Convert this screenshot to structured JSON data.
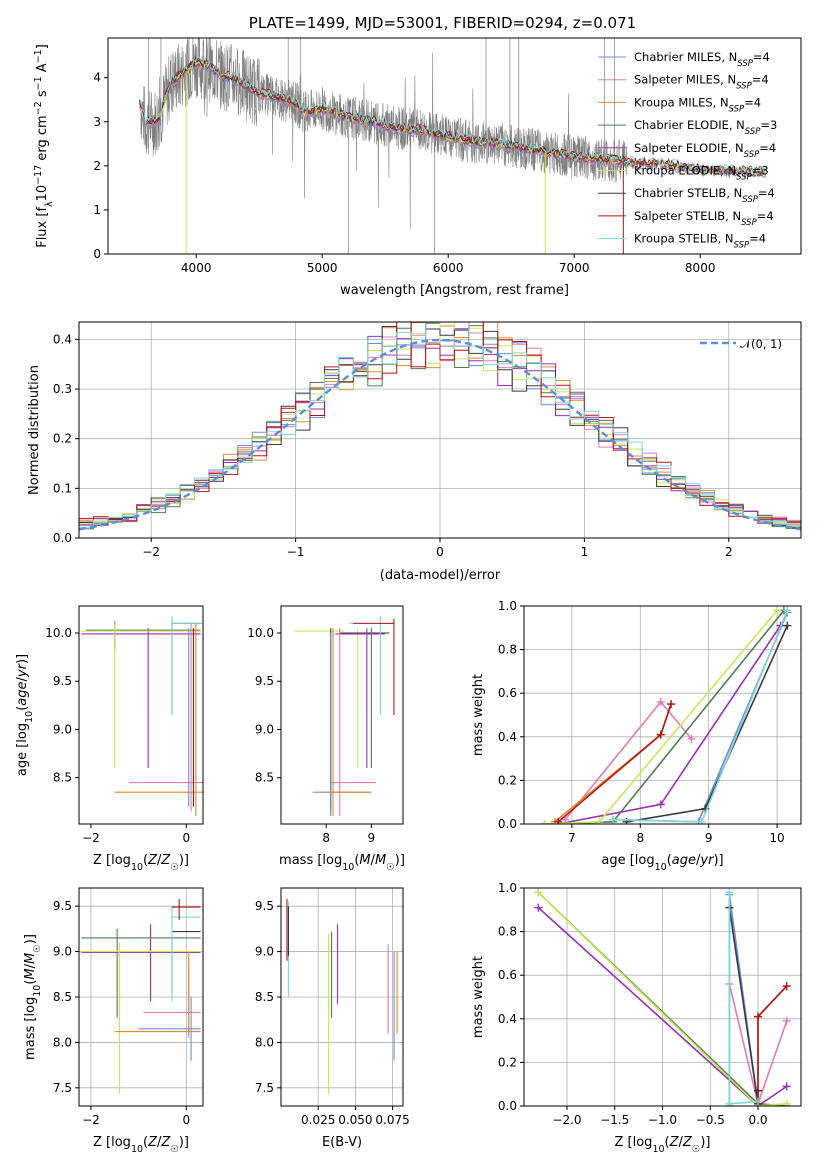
{
  "colors": {
    "Chabrier MILES": "#6b8fe0",
    "Salpeter MILES": "#e07bb8",
    "Kroupa MILES": "#e08a30",
    "Chabrier ELODIE": "#4e7f4e",
    "Salpeter ELODIE": "#9b2fb5",
    "Kroupa ELODIE": "#c8e65a",
    "Chabrier STELIB": "#3a3a3a",
    "Salpeter STELIB": "#b01818",
    "Kroupa STELIB": "#7ed6d6",
    "data": "#808080",
    "normal": "#5b8fd9"
  },
  "chart_data": [
    {
      "id": "spectrum",
      "type": "line",
      "title": "PLATE=1499, MJD=53001, FIBERID=0294, z=0.071",
      "xlabel": "wavelength [Angstrom, rest frame]",
      "ylabel": "Flux [f_λ 10^-17 erg cm^-2 s^-1 A^-1]",
      "xlim": [
        3300,
        8800
      ],
      "ylim": [
        0,
        4.9
      ],
      "xticks": [
        "4000",
        "5000",
        "6000",
        "7000",
        "8000"
      ],
      "yticks": [
        "0",
        "1",
        "2",
        "3",
        "4"
      ],
      "legend_position": "top-right",
      "legend": [
        "Chabrier MILES, N_SSP=4",
        "Salpeter MILES, N_SSP=4",
        "Kroupa MILES, N_SSP=4",
        "Chabrier ELODIE, N_SSP=3",
        "Salpeter ELODIE, N_SSP=4",
        "Kroupa ELODIE, N_SSP=3",
        "Chabrier STELIB, N_SSP=4",
        "Salpeter STELIB, N_SSP=4",
        "Kroupa STELIB, N_SSP=4"
      ],
      "model_x": [
        3550,
        3600,
        3700,
        3800,
        3900,
        4000,
        4100,
        4200,
        4300,
        4400,
        4500,
        4600,
        4700,
        4800,
        4860,
        5000,
        5200,
        5400,
        5600,
        5800,
        6000,
        6200,
        6400,
        6600,
        6800,
        7000,
        7200,
        7400,
        7500,
        7700,
        7900,
        8100,
        8300,
        8500
      ],
      "model_y": [
        3.45,
        2.95,
        3.05,
        3.9,
        4.1,
        4.35,
        4.25,
        4.05,
        4.0,
        3.8,
        3.65,
        3.6,
        3.5,
        3.4,
        3.2,
        3.3,
        3.1,
        3.0,
        2.85,
        2.8,
        2.65,
        2.55,
        2.5,
        2.4,
        2.3,
        2.2,
        2.15,
        2.1,
        2.05,
        2.05,
        1.95,
        1.9,
        1.88,
        1.85
      ]
    },
    {
      "id": "residuals",
      "type": "histogram",
      "xlabel": "(data-model)/error",
      "ylabel": "Normed distribution",
      "xlim": [
        -2.5,
        2.5
      ],
      "ylim": [
        0,
        0.435
      ],
      "xticks": [
        "−2",
        "−1",
        "0",
        "1",
        "2"
      ],
      "yticks": [
        "0.0",
        "0.1",
        "0.2",
        "0.3",
        "0.4"
      ],
      "grid": true,
      "legend_position": "top-right",
      "legend": [
        "𝒩(0, 1)"
      ],
      "bin_width": 0.1
    },
    {
      "id": "age-vs-z",
      "type": "errorbar",
      "xlabel": "Z [log10(Z/Z☉)]",
      "ylabel": "age [log10(age/yr)]",
      "xlim": [
        -2.25,
        0.35
      ],
      "ylim": [
        8.02,
        10.28
      ],
      "xticks": [
        "−2",
        "0"
      ],
      "yticks": [
        "8.5",
        "9.0",
        "9.5",
        "10.0"
      ]
    },
    {
      "id": "age-vs-mass",
      "type": "errorbar",
      "xlabel": "mass [log10(M/M☉)]",
      "ylabel": "",
      "xlim": [
        7.0,
        9.7
      ],
      "ylim": [
        8.02,
        10.28
      ],
      "xticks": [
        "8",
        "9"
      ],
      "yticks": [
        "8.5",
        "9.0",
        "9.5",
        "10.0"
      ]
    },
    {
      "id": "weight-vs-age",
      "type": "line",
      "xlabel": "age [log10(age/yr)]",
      "ylabel": "mass weight",
      "xlim": [
        6.3,
        10.35
      ],
      "ylim": [
        0,
        1
      ],
      "xticks": [
        "7",
        "8",
        "9",
        "10"
      ],
      "yticks": [
        "0.0",
        "0.2",
        "0.4",
        "0.6",
        "0.8",
        "1.0"
      ],
      "grid": true,
      "series": [
        {
          "name": "Chabrier MILES",
          "x": [
            7.6,
            8.85,
            10.15
          ],
          "y": [
            0.02,
            0.01,
            0.97
          ]
        },
        {
          "name": "Salpeter MILES",
          "x": [
            6.9,
            8.3,
            8.75
          ],
          "y": [
            0.02,
            0.56,
            0.39
          ]
        },
        {
          "name": "Kroupa MILES",
          "x": [
            6.75,
            8.3,
            8.45
          ],
          "y": [
            0.01,
            0.41,
            0.55
          ]
        },
        {
          "name": "Chabrier ELODIE",
          "x": [
            6.6,
            7.6,
            10.1
          ],
          "y": [
            0.0,
            0.01,
            0.98
          ]
        },
        {
          "name": "Salpeter ELODIE",
          "x": [
            6.8,
            8.3,
            10.05
          ],
          "y": [
            0.0,
            0.09,
            0.91
          ]
        },
        {
          "name": "Kroupa ELODIE",
          "x": [
            6.6,
            7.4,
            10.0
          ],
          "y": [
            0.0,
            0.01,
            0.98
          ]
        },
        {
          "name": "Chabrier STELIB",
          "x": [
            7.8,
            8.95,
            10.15
          ],
          "y": [
            0.01,
            0.07,
            0.91
          ]
        },
        {
          "name": "Salpeter STELIB",
          "x": [
            6.8,
            8.3,
            8.45
          ],
          "y": [
            0.01,
            0.41,
            0.55
          ]
        },
        {
          "name": "Kroupa STELIB",
          "x": [
            7.6,
            8.9,
            10.15
          ],
          "y": [
            0.02,
            0.01,
            0.98
          ]
        }
      ]
    },
    {
      "id": "mass-vs-z",
      "type": "errorbar",
      "xlabel": "Z [log10(Z/Z☉)]",
      "ylabel": "mass [log10(M/M☉)]",
      "xlim": [
        -2.25,
        0.35
      ],
      "ylim": [
        7.3,
        9.7
      ],
      "xticks": [
        "−2",
        "0"
      ],
      "yticks": [
        "7.5",
        "8.0",
        "8.5",
        "9.0",
        "9.5"
      ],
      "grid": true
    },
    {
      "id": "mass-vs-ebv",
      "type": "errorbar",
      "xlabel": "E(B-V)",
      "ylabel": "",
      "xlim": [
        0.0,
        0.082
      ],
      "ylim": [
        7.3,
        9.7
      ],
      "xticks": [
        "0.025",
        "0.050",
        "0.075"
      ],
      "yticks": [
        "7.5",
        "8.0",
        "8.5",
        "9.0",
        "9.5"
      ],
      "grid": true
    },
    {
      "id": "weight-vs-z",
      "type": "line",
      "xlabel": "Z [log10(Z/Z☉)]",
      "ylabel": "mass weight",
      "xlim": [
        -2.45,
        0.45
      ],
      "ylim": [
        0,
        1
      ],
      "xticks": [
        "−2.0",
        "−1.5",
        "−1.0",
        "−0.5",
        "0.0"
      ],
      "yticks": [
        "0.0",
        "0.2",
        "0.4",
        "0.6",
        "0.8",
        "1.0"
      ],
      "grid": true,
      "series": [
        {
          "name": "Chabrier MILES",
          "x": [
            -0.3,
            -0.3,
            0.0
          ],
          "y": [
            0.0,
            0.97,
            0.01
          ]
        },
        {
          "name": "Salpeter MILES",
          "x": [
            -0.3,
            0.0,
            0.3
          ],
          "y": [
            0.56,
            0.01,
            0.39
          ]
        },
        {
          "name": "Kroupa MILES",
          "x": [
            0.0,
            0.0,
            0.3
          ],
          "y": [
            0.01,
            0.41,
            0.55
          ]
        },
        {
          "name": "Chabrier ELODIE",
          "x": [
            -2.3,
            0.0,
            0.3
          ],
          "y": [
            0.98,
            0.01,
            0.0
          ]
        },
        {
          "name": "Salpeter ELODIE",
          "x": [
            -2.3,
            0.0,
            0.3
          ],
          "y": [
            0.91,
            0.0,
            0.09
          ]
        },
        {
          "name": "Kroupa ELODIE",
          "x": [
            -2.3,
            0.0,
            0.3
          ],
          "y": [
            0.98,
            0.0,
            0.01
          ]
        },
        {
          "name": "Chabrier STELIB",
          "x": [
            -0.3,
            0.0,
            0.0
          ],
          "y": [
            0.91,
            0.01,
            0.07
          ]
        },
        {
          "name": "Salpeter STELIB",
          "x": [
            0.0,
            0.0,
            0.3
          ],
          "y": [
            0.01,
            0.41,
            0.55
          ]
        },
        {
          "name": "Kroupa STELIB",
          "x": [
            -0.3,
            -0.3,
            0.0
          ],
          "y": [
            0.98,
            0.01,
            0.02
          ]
        }
      ]
    }
  ]
}
